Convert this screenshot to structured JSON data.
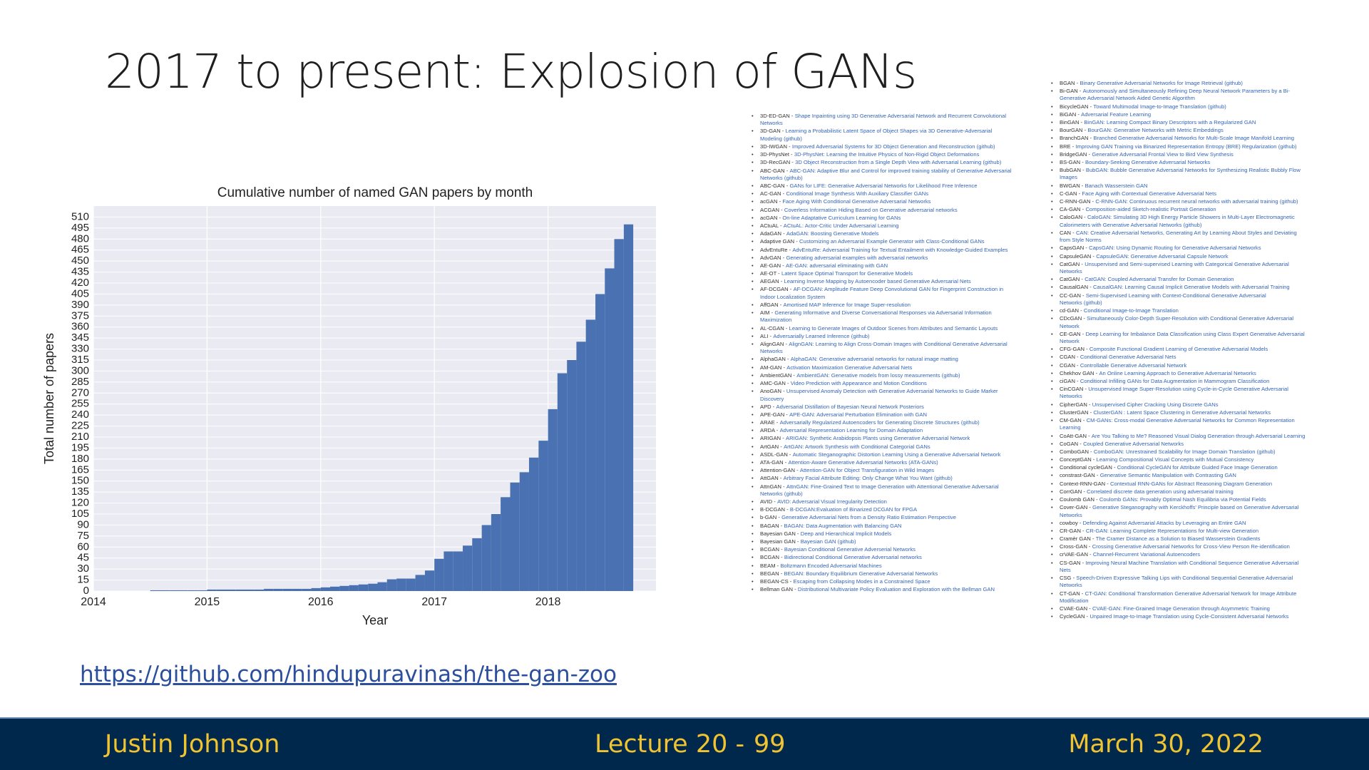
{
  "slide": {
    "title": "2017 to present: Explosion of GANs",
    "link": "https://github.com/hindupuravinash/the-gan-zoo",
    "footer": {
      "author": "Justin Johnson",
      "lecture": "Lecture 20 -",
      "page": "99",
      "date": "March 30, 2022"
    }
  },
  "chart_data": {
    "type": "histogram",
    "title": "Cumulative number of named GAN papers by month",
    "xlabel": "Year",
    "ylabel": "Total number of papers",
    "color": "#4a72b2",
    "grid": true,
    "bins": [
      2014.5,
      2014.583,
      2014.667,
      2014.75,
      2014.833,
      2014.917,
      2015,
      2015.083,
      2015.167,
      2015.25,
      2015.333,
      2015.417,
      2015.5,
      2015.583,
      2015.667,
      2015.75,
      2015.833,
      2015.917,
      2016,
      2016.083,
      2016.167,
      2016.25,
      2016.333,
      2016.417,
      2016.5,
      2016.583,
      2016.667,
      2016.75,
      2016.833,
      2016.917,
      2017,
      2017.083,
      2017.167,
      2017.25,
      2017.333,
      2017.417,
      2017.5,
      2017.583,
      2017.667,
      2017.75,
      2017.833,
      2017.917,
      2018,
      2018.083,
      2018.167,
      2018.25,
      2018.333,
      2018.417,
      2018.5,
      2018.583,
      2018.667,
      2018.75
    ],
    "values": [
      1,
      1,
      1,
      1,
      1,
      1,
      2,
      2,
      2,
      2,
      2,
      2,
      3,
      3,
      3,
      3,
      3,
      4,
      5,
      6,
      7,
      8,
      9,
      10,
      12,
      16,
      17,
      17,
      22,
      28,
      44,
      54,
      54,
      62,
      72,
      90,
      105,
      128,
      148,
      162,
      182,
      205,
      248,
      297,
      315,
      340,
      370,
      405,
      440,
      480,
      500
    ],
    "xlim": [
      2014,
      2018.95
    ],
    "xticks": [
      2014,
      2015,
      2016,
      2017,
      2018
    ],
    "ylim": [
      0,
      525
    ],
    "yticks": [
      0,
      15,
      30,
      45,
      60,
      75,
      90,
      105,
      120,
      135,
      150,
      165,
      180,
      195,
      210,
      225,
      240,
      255,
      270,
      285,
      300,
      315,
      330,
      345,
      360,
      375,
      390,
      405,
      420,
      435,
      450,
      465,
      480,
      495,
      510
    ]
  },
  "gan_list": {
    "columns": [
      [
        {
          "name": "3D-ED-GAN -",
          "title": "Shape Inpainting using 3D Generative Adversarial Network and Recurrent Convolutional Networks"
        },
        {
          "name": "3D-GAN -",
          "title": "Learning a Probabilistic Latent Space of Object Shapes via 3D Generative-Adversarial Modeling",
          "github": "(github)"
        },
        {
          "name": "3D-IWGAN -",
          "title": "Improved Adversarial Systems for 3D Object Generation and Reconstruction",
          "github": "(github)"
        },
        {
          "name": "3D-PhysNet -",
          "title": "3D-PhysNet: Learning the Intuitive Physics of Non-Rigid Object Deformations"
        },
        {
          "name": "3D-RecGAN -",
          "title": "3D Object Reconstruction from a Single Depth View with Adversarial Learning",
          "github": "(github)"
        },
        {
          "name": "ABC-GAN -",
          "title": "ABC-GAN: Adaptive Blur and Control for improved training stability of Generative Adversarial Networks",
          "github": "(github)"
        },
        {
          "name": "ABC-GAN -",
          "title": "GANs for LIFE: Generative Adversarial Networks for Likelihood Free Inference"
        },
        {
          "name": "AC-GAN -",
          "title": "Conditional Image Synthesis With Auxiliary Classifier GANs"
        },
        {
          "name": "acGAN -",
          "title": "Face Aging With Conditional Generative Adversarial Networks"
        },
        {
          "name": "ACGAN -",
          "title": "Coverless Information Hiding Based on Generative adversarial networks"
        },
        {
          "name": "acGAN -",
          "title": "On-line Adaptative Curriculum Learning for GANs"
        },
        {
          "name": "ACtuAL -",
          "title": "ACtuAL: Actor-Critic Under Adversarial Learning"
        },
        {
          "name": "AdaGAN -",
          "title": "AdaGAN: Boosting Generative Models"
        },
        {
          "name": "Adaptive GAN -",
          "title": "Customizing an Adversarial Example Generator with Class-Conditional GANs"
        },
        {
          "name": "AdvEntuRe -",
          "title": "AdvEntuRe: Adversarial Training for Textual Entailment with Knowledge-Guided Examples"
        },
        {
          "name": "AdvGAN -",
          "title": "Generating adversarial examples with adversarial networks"
        },
        {
          "name": "AE-GAN -",
          "title": "AE-GAN: adversarial eliminating with GAN"
        },
        {
          "name": "AE-OT -",
          "title": "Latent Space Optimal Transport for Generative Models"
        },
        {
          "name": "AEGAN -",
          "title": "Learning Inverse Mapping by Autoencoder based Generative Adversarial Nets"
        },
        {
          "name": "AF-DCGAN -",
          "title": "AF-DCGAN: Amplitude Feature Deep Convolutional GAN for Fingerprint Construction in Indoor Localization System"
        },
        {
          "name": "AffGAN -",
          "title": "Amortised MAP Inference for Image Super-resolution"
        },
        {
          "name": "AIM -",
          "title": "Generating Informative and Diverse Conversational Responses via Adversarial Information Maximization"
        },
        {
          "name": "AL-CGAN -",
          "title": "Learning to Generate Images of Outdoor Scenes from Attributes and Semantic Layouts"
        },
        {
          "name": "ALI -",
          "title": "Adversarially Learned Inference",
          "github": "(github)"
        },
        {
          "name": "AlignGAN -",
          "title": "AlignGAN: Learning to Align Cross-Domain Images with Conditional Generative Adversarial Networks"
        },
        {
          "name": "AlphaGAN -",
          "title": "AlphaGAN: Generative adversarial networks for natural image matting"
        },
        {
          "name": "AM-GAN -",
          "title": "Activation Maximization Generative Adversarial Nets"
        },
        {
          "name": "AmbientGAN -",
          "title": "AmbientGAN: Generative models from lossy measurements",
          "github": "(github)"
        },
        {
          "name": "AMC-GAN -",
          "title": "Video Prediction with Appearance and Motion Conditions"
        },
        {
          "name": "AnoGAN -",
          "title": "Unsupervised Anomaly Detection with Generative Adversarial Networks to Guide Marker Discovery"
        },
        {
          "name": "APD -",
          "title": "Adversarial Distillation of Bayesian Neural Network Posteriors"
        },
        {
          "name": "APE-GAN -",
          "title": "APE-GAN: Adversarial Perturbation Elimination with GAN"
        },
        {
          "name": "ARAE -",
          "title": "Adversarially Regularized Autoencoders for Generating Discrete Structures",
          "github": "(github)"
        },
        {
          "name": "ARDA -",
          "title": "Adversarial Representation Learning for Domain Adaptation"
        },
        {
          "name": "ARIGAN -",
          "title": "ARIGAN: Synthetic Arabidopsis Plants using Generative Adversarial Network"
        },
        {
          "name": "ArtGAN -",
          "title": "ArtGAN: Artwork Synthesis with Conditional Categorial GANs"
        },
        {
          "name": "ASDL-GAN -",
          "title": "Automatic Steganographic Distortion Learning Using a Generative Adversarial Network"
        },
        {
          "name": "ATA-GAN -",
          "title": "Attention-Aware Generative Adversarial Networks (ATA-GANs)"
        },
        {
          "name": "Attention-GAN -",
          "title": "Attention-GAN for Object Transfiguration in Wild Images"
        },
        {
          "name": "AttGAN -",
          "title": "Arbitrary Facial Attribute Editing: Only Change What You Want",
          "github": "(github)"
        },
        {
          "name": "AttnGAN -",
          "title": "AttnGAN: Fine-Grained Text to Image Generation with Attentional Generative Adversarial Networks",
          "github": "(github)"
        },
        {
          "name": "AVID -",
          "title": "AVID: Adversarial Visual Irregularity Detection"
        },
        {
          "name": "B-DCGAN -",
          "title": "B-DCGAN:Evaluation of Binarized DCGAN for FPGA"
        },
        {
          "name": "b-GAN -",
          "title": "Generative Adversarial Nets from a Density Ratio Estimation Perspective"
        },
        {
          "name": "BAGAN -",
          "title": "BAGAN: Data Augmentation with Balancing GAN"
        },
        {
          "name": "Bayesian GAN -",
          "title": "Deep and Hierarchical Implicit Models"
        },
        {
          "name": "Bayesian GAN -",
          "title": "Bayesian GAN",
          "github": "(github)"
        },
        {
          "name": "BCGAN -",
          "title": "Bayesian Conditional Generative Adverserial Networks"
        },
        {
          "name": "BCGAN -",
          "title": "Bidirectional Conditional Generative Adversarial networks"
        },
        {
          "name": "BEAM -",
          "title": "Boltzmann Encoded Adversarial Machines"
        },
        {
          "name": "BEGAN -",
          "title": "BEGAN: Boundary Equilibrium Generative Adversarial Networks"
        },
        {
          "name": "BEGAN-CS -",
          "title": "Escaping from Collapsing Modes in a Constrained Space"
        },
        {
          "name": "Bellman GAN -",
          "title": "Distributional Multivariate Policy Evaluation and Exploration with the Bellman GAN"
        }
      ],
      [
        {
          "name": "BGAN -",
          "title": "Binary Generative Adversarial Networks for Image Retrieval",
          "github": "(github)"
        },
        {
          "name": "Bi-GAN -",
          "title": "Autonomously and Simultaneously Refining Deep Neural Network Parameters by a Bi-Generative Adversarial Network Aided Genetic Algorithm"
        },
        {
          "name": "BicycleGAN -",
          "title": "Toward Multimodal Image-to-Image Translation",
          "github": "(github)"
        },
        {
          "name": "BiGAN -",
          "title": "Adversarial Feature Learning"
        },
        {
          "name": "BinGAN -",
          "title": "BinGAN: Learning Compact Binary Descriptors with a Regularized GAN"
        },
        {
          "name": "BourGAN -",
          "title": "BourGAN: Generative Networks with Metric Embeddings"
        },
        {
          "name": "BranchGAN -",
          "title": "Branched Generative Adversarial Networks for Multi-Scale Image Manifold Learning"
        },
        {
          "name": "BRE -",
          "title": "Improving GAN Training via Binarized Representation Entropy (BRE) Regularization",
          "github": "(github)"
        },
        {
          "name": "BridgeGAN -",
          "title": "Generative Adversarial Frontal View to Bird View Synthesis"
        },
        {
          "name": "BS-GAN -",
          "title": "Boundary-Seeking Generative Adversarial Networks"
        },
        {
          "name": "BubGAN -",
          "title": "BubGAN: Bubble Generative Adversarial Networks for Synthesizing Realistic Bubbly Flow Images"
        },
        {
          "name": "BWGAN -",
          "title": "Banach Wasserstein GAN"
        },
        {
          "name": "C-GAN -",
          "title": "Face Aging with Contextual Generative Adversarial Nets"
        },
        {
          "name": "C-RNN-GAN -",
          "title": "C-RNN-GAN: Continuous recurrent neural networks with adversarial training",
          "github": "(github)"
        },
        {
          "name": "CA-GAN -",
          "title": "Composition-aided Sketch-realistic Portrait Generation"
        },
        {
          "name": "CaloGAN -",
          "title": "CaloGAN: Simulating 3D High Energy Particle Showers in Multi-Layer Electromagnetic Calorimeters with Generative Adversarial Networks",
          "github": "(github)"
        },
        {
          "name": "CAN -",
          "title": "CAN: Creative Adversarial Networks, Generating Art by Learning About Styles and Deviating from Style Norms"
        },
        {
          "name": "CapsGAN -",
          "title": "CapsGAN: Using Dynamic Routing for Generative Adversarial Networks"
        },
        {
          "name": "CapsuleGAN -",
          "title": "CapsuleGAN: Generative Adversarial Capsule Network"
        },
        {
          "name": "CatGAN -",
          "title": "Unsupervised and Semi-supervised Learning with Categorical Generative Adversarial Networks"
        },
        {
          "name": "CatGAN -",
          "title": "CatGAN: Coupled Adversarial Transfer for Domain Generation"
        },
        {
          "name": "CausalGAN -",
          "title": "CausalGAN: Learning Causal Implicit Generative Models with Adversarial Training"
        },
        {
          "name": "CC-GAN -",
          "title": "Semi-Supervised Learning with Context-Conditional Generative Adversarial Networks",
          "github": "(github)"
        },
        {
          "name": "cd-GAN -",
          "title": "Conditional Image-to-Image Translation"
        },
        {
          "name": "CDcGAN -",
          "title": "Simultaneously Color-Depth Super-Resolution with Conditional Generative Adversarial Network"
        },
        {
          "name": "CE-GAN -",
          "title": "Deep Learning for Imbalance Data Classification using Class Expert Generative Adversarial Network"
        },
        {
          "name": "CFG-GAN -",
          "title": "Composite Functional Gradient Learning of Generative Adversarial Models"
        },
        {
          "name": "CGAN -",
          "title": "Conditional Generative Adversarial Nets"
        },
        {
          "name": "CGAN -",
          "title": "Controllable Generative Adversarial Network"
        },
        {
          "name": "Chekhov GAN -",
          "title": "An Online Learning Approach to Generative Adversarial Networks"
        },
        {
          "name": "ciGAN -",
          "title": "Conditional Infilling GANs for Data Augmentation in Mammogram Classification"
        },
        {
          "name": "CinCGAN -",
          "title": "Unsupervised Image Super-Resolution using Cycle-in-Cycle Generative Adversarial Networks"
        },
        {
          "name": "CipherGAN -",
          "title": "Unsupervised Cipher Cracking Using Discrete GANs"
        },
        {
          "name": "ClusterGAN -",
          "title": "ClusterGAN : Latent Space Clustering in Generative Adversarial Networks"
        },
        {
          "name": "CM-GAN -",
          "title": "CM-GANs: Cross-modal Generative Adversarial Networks for Common Representation Learning"
        },
        {
          "name": "CoAtt-GAN -",
          "title": "Are You Talking to Me? Reasoned Visual Dialog Generation through Adversarial Learning"
        },
        {
          "name": "CoGAN -",
          "title": "Coupled Generative Adversarial Networks"
        },
        {
          "name": "ComboGAN -",
          "title": "ComboGAN: Unrestrained Scalability for Image Domain Translation",
          "github": "(github)"
        },
        {
          "name": "ConceptGAN -",
          "title": "Learning Compositional Visual Concepts with Mutual Consistency"
        },
        {
          "name": "Conditional cycleGAN -",
          "title": "Conditional CycleGAN for Attribute Guided Face Image Generation"
        },
        {
          "name": "constrast-GAN -",
          "title": "Generative Semantic Manipulation with Contrasting GAN"
        },
        {
          "name": "Context-RNN-GAN -",
          "title": "Contextual RNN-GANs for Abstract Reasoning Diagram Generation"
        },
        {
          "name": "CorrGAN -",
          "title": "Correlated discrete data generation using adversarial training"
        },
        {
          "name": "Coulomb GAN -",
          "title": "Coulomb GANs: Provably Optimal Nash Equilibria via Potential Fields"
        },
        {
          "name": "Cover-GAN -",
          "title": "Generative Steganography with Kerckhoffs' Principle based on Generative Adversarial Networks"
        },
        {
          "name": "cowboy -",
          "title": "Defending Against Adversarial Attacks by Leveraging an Entire GAN"
        },
        {
          "name": "CR-GAN -",
          "title": "CR-GAN: Learning Complete Representations for Multi-view Generation"
        },
        {
          "name": "Cramèr GAN -",
          "title": "The Cramer Distance as a Solution to Biased Wasserstein Gradients"
        },
        {
          "name": "Cross-GAN -",
          "title": "Crossing Generative Adversarial Networks for Cross-View Person Re-identification"
        },
        {
          "name": "crVAE-GAN -",
          "title": "Channel-Recurrent Variational Autoencoders"
        },
        {
          "name": "CS-GAN -",
          "title": "Improving Neural Machine Translation with Conditional Sequence Generative Adversarial Nets"
        },
        {
          "name": "CSG -",
          "title": "Speech-Driven Expressive Talking Lips with Conditional Sequential Generative Adversarial Networks"
        },
        {
          "name": "CT-GAN -",
          "title": "CT-GAN: Conditional Transformation Generative Adversarial Network for Image Attribute Modification"
        },
        {
          "name": "CVAE-GAN -",
          "title": "CVAE-GAN: Fine-Grained Image Generation through Asymmetric Training"
        },
        {
          "name": "CycleGAN -",
          "title": "Unpaired Image-to-Image Translation using Cycle-Consistent Adversarial Networks"
        }
      ]
    ]
  }
}
